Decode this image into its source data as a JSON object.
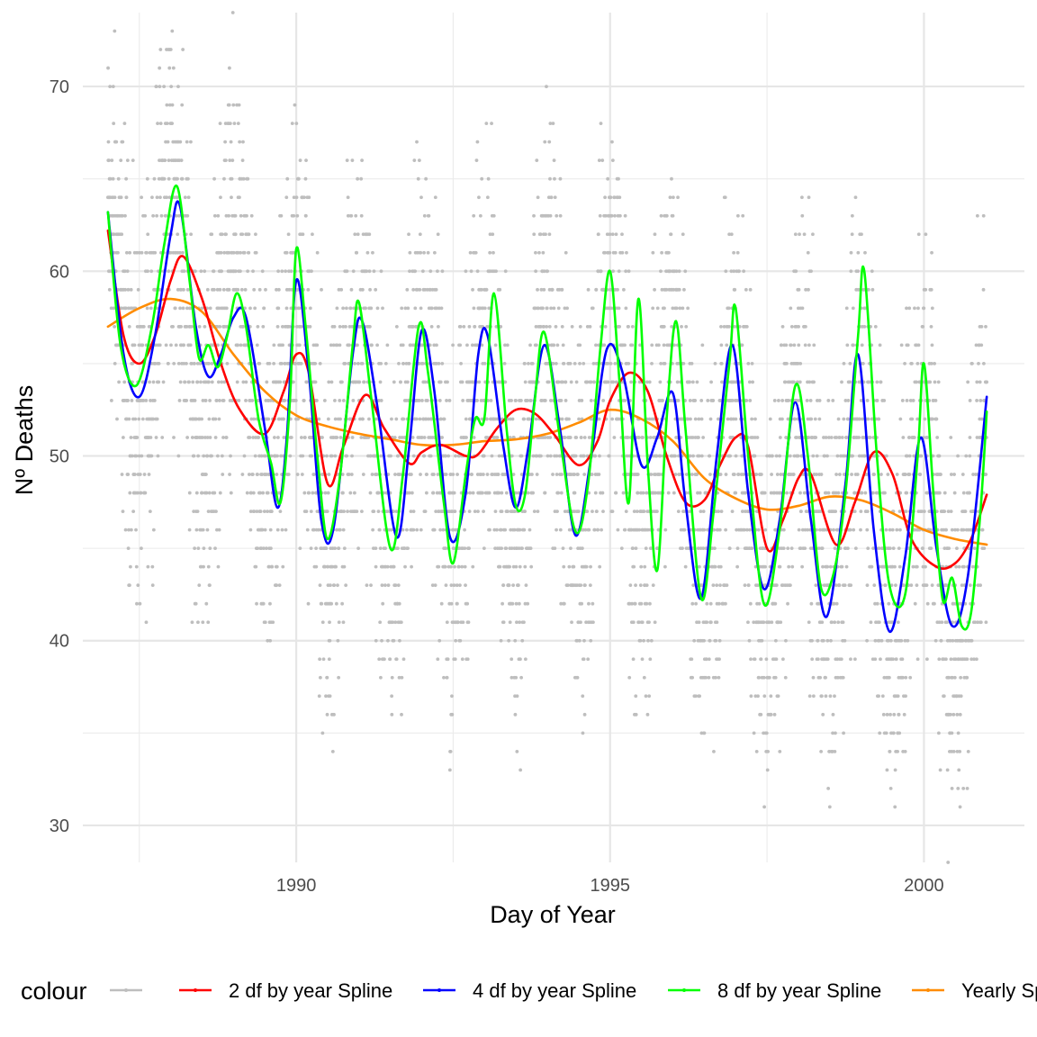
{
  "chart_data": {
    "type": "line",
    "title": "",
    "xlabel": "Day of Year",
    "ylabel": "Nº Deaths",
    "xlim": [
      1986.6,
      2001.6
    ],
    "ylim": [
      28,
      74
    ],
    "x_ticks": [
      1990,
      1995,
      2000
    ],
    "y_ticks": [
      30,
      40,
      50,
      60,
      70
    ],
    "x_minor_ticks": [
      1987.5,
      1992.5,
      1997.5
    ],
    "y_minor_ticks": [
      35,
      45,
      55,
      65
    ],
    "grid": true,
    "legend": {
      "title": "colour",
      "position": "bottom",
      "entries": [
        {
          "label": "",
          "color": "#bebebe"
        },
        {
          "label": "2 df by year Spline",
          "color": "#ff0000"
        },
        {
          "label": "4 df by year Spline",
          "color": "#0000ff"
        },
        {
          "label": "8 df by year Spline",
          "color": "#00ff00"
        },
        {
          "label": "Yearly Spline",
          "color": "#ff8c00"
        }
      ]
    },
    "points": {
      "color": "#bebebe",
      "x_start": 1987.0,
      "x_end": 2001.0,
      "count": 5114,
      "trend": [
        [
          1987.0,
          57
        ],
        [
          1988.0,
          58.5
        ],
        [
          1989.0,
          55
        ],
        [
          1990.0,
          52.2
        ],
        [
          1991.0,
          51.2
        ],
        [
          1992.0,
          50.6
        ],
        [
          1993.0,
          50.8
        ],
        [
          1994.0,
          51.2
        ],
        [
          1995.0,
          52.5
        ],
        [
          1996.0,
          50.8
        ],
        [
          1997.0,
          47.7
        ],
        [
          1998.0,
          47.5
        ],
        [
          1999.0,
          47.5
        ],
        [
          2000.0,
          46.0
        ],
        [
          2001.0,
          45.2
        ]
      ],
      "seasonal_amplitude": 6,
      "spread": 5
    },
    "series": [
      {
        "name": "2 df by year Spline",
        "color": "#ff0000",
        "points": [
          [
            1987.0,
            62.2
          ],
          [
            1987.25,
            56.5
          ],
          [
            1987.5,
            55.0
          ],
          [
            1987.75,
            56.5
          ],
          [
            1988.0,
            59.5
          ],
          [
            1988.2,
            60.8
          ],
          [
            1988.5,
            58.5
          ],
          [
            1988.8,
            55.0
          ],
          [
            1989.1,
            52.5
          ],
          [
            1989.5,
            51.2
          ],
          [
            1989.8,
            53.5
          ],
          [
            1990.0,
            55.5
          ],
          [
            1990.2,
            54.5
          ],
          [
            1990.5,
            48.5
          ],
          [
            1990.75,
            50.5
          ],
          [
            1991.1,
            53.3
          ],
          [
            1991.4,
            51.5
          ],
          [
            1991.8,
            49.6
          ],
          [
            1992.0,
            50.2
          ],
          [
            1992.3,
            50.6
          ],
          [
            1992.7,
            50.0
          ],
          [
            1992.9,
            50.1
          ],
          [
            1993.2,
            51.5
          ],
          [
            1993.5,
            52.5
          ],
          [
            1993.8,
            52.3
          ],
          [
            1994.1,
            51.2
          ],
          [
            1994.5,
            49.5
          ],
          [
            1994.8,
            50.8
          ],
          [
            1995.0,
            53.0
          ],
          [
            1995.3,
            54.5
          ],
          [
            1995.6,
            53.5
          ],
          [
            1995.9,
            50.0
          ],
          [
            1996.2,
            47.5
          ],
          [
            1996.5,
            47.6
          ],
          [
            1996.75,
            49.5
          ],
          [
            1997.0,
            51.0
          ],
          [
            1997.2,
            50.5
          ],
          [
            1997.5,
            45.0
          ],
          [
            1997.75,
            46.5
          ],
          [
            1998.0,
            48.8
          ],
          [
            1998.2,
            49.0
          ],
          [
            1998.6,
            45.2
          ],
          [
            1998.9,
            47.5
          ],
          [
            1999.2,
            50.2
          ],
          [
            1999.5,
            49.0
          ],
          [
            1999.8,
            45.5
          ],
          [
            2000.2,
            44.0
          ],
          [
            2000.5,
            44.2
          ],
          [
            2000.75,
            45.5
          ],
          [
            2001.0,
            47.9
          ]
        ]
      },
      {
        "name": "4 df by year Spline",
        "color": "#0000ff",
        "points": [
          [
            1987.0,
            63.2
          ],
          [
            1987.25,
            55.5
          ],
          [
            1987.5,
            53.2
          ],
          [
            1987.75,
            56.5
          ],
          [
            1988.0,
            62.0
          ],
          [
            1988.15,
            63.5
          ],
          [
            1988.4,
            57.0
          ],
          [
            1988.6,
            54.3
          ],
          [
            1988.8,
            55.5
          ],
          [
            1989.0,
            57.5
          ],
          [
            1989.2,
            57.5
          ],
          [
            1989.5,
            51.5
          ],
          [
            1989.7,
            47.2
          ],
          [
            1989.85,
            51.0
          ],
          [
            1990.0,
            59.5
          ],
          [
            1990.2,
            54.5
          ],
          [
            1990.4,
            46.5
          ],
          [
            1990.6,
            46.2
          ],
          [
            1990.9,
            55.5
          ],
          [
            1991.05,
            57.3
          ],
          [
            1991.3,
            52.5
          ],
          [
            1991.6,
            45.6
          ],
          [
            1991.8,
            50.5
          ],
          [
            1992.0,
            56.8
          ],
          [
            1992.2,
            53.5
          ],
          [
            1992.45,
            45.6
          ],
          [
            1992.7,
            48.0
          ],
          [
            1992.9,
            55.5
          ],
          [
            1993.05,
            56.5
          ],
          [
            1993.3,
            50.5
          ],
          [
            1993.5,
            47.2
          ],
          [
            1993.7,
            50.5
          ],
          [
            1993.95,
            56.0
          ],
          [
            1994.2,
            51.5
          ],
          [
            1994.45,
            45.7
          ],
          [
            1994.7,
            50.0
          ],
          [
            1994.95,
            55.8
          ],
          [
            1995.2,
            54.5
          ],
          [
            1995.5,
            49.5
          ],
          [
            1995.75,
            51.0
          ],
          [
            1996.0,
            53.4
          ],
          [
            1996.2,
            47.5
          ],
          [
            1996.45,
            42.3
          ],
          [
            1996.7,
            50.0
          ],
          [
            1996.95,
            56.0
          ],
          [
            1997.2,
            48.0
          ],
          [
            1997.45,
            42.8
          ],
          [
            1997.7,
            46.5
          ],
          [
            1997.95,
            52.9
          ],
          [
            1998.2,
            46.5
          ],
          [
            1998.45,
            41.3
          ],
          [
            1998.75,
            48.5
          ],
          [
            1998.95,
            55.5
          ],
          [
            1999.2,
            46.0
          ],
          [
            1999.45,
            40.5
          ],
          [
            1999.7,
            44.5
          ],
          [
            1999.95,
            51.0
          ],
          [
            2000.2,
            45.0
          ],
          [
            2000.45,
            40.8
          ],
          [
            2000.7,
            43.5
          ],
          [
            2001.0,
            53.2
          ]
        ]
      },
      {
        "name": "8 df by year Spline",
        "color": "#00ff00",
        "points": [
          [
            1987.0,
            63.2
          ],
          [
            1987.2,
            56.0
          ],
          [
            1987.45,
            53.8
          ],
          [
            1987.7,
            57.0
          ],
          [
            1987.9,
            61.5
          ],
          [
            1988.1,
            64.6
          ],
          [
            1988.3,
            59.5
          ],
          [
            1988.45,
            55.3
          ],
          [
            1988.6,
            56.0
          ],
          [
            1988.75,
            54.8
          ],
          [
            1988.9,
            56.5
          ],
          [
            1989.05,
            58.8
          ],
          [
            1989.2,
            57.0
          ],
          [
            1989.4,
            52.0
          ],
          [
            1989.6,
            49.6
          ],
          [
            1989.75,
            47.5
          ],
          [
            1989.9,
            53.0
          ],
          [
            1990.0,
            61.2
          ],
          [
            1990.15,
            57.0
          ],
          [
            1990.35,
            49.5
          ],
          [
            1990.5,
            45.5
          ],
          [
            1990.7,
            49.0
          ],
          [
            1990.9,
            56.0
          ],
          [
            1991.0,
            58.3
          ],
          [
            1991.2,
            53.0
          ],
          [
            1991.5,
            45.0
          ],
          [
            1991.7,
            49.0
          ],
          [
            1991.95,
            57.0
          ],
          [
            1992.1,
            54.5
          ],
          [
            1992.35,
            47.5
          ],
          [
            1992.5,
            44.2
          ],
          [
            1992.7,
            49.0
          ],
          [
            1992.85,
            52.0
          ],
          [
            1993.0,
            52.1
          ],
          [
            1993.15,
            58.8
          ],
          [
            1993.35,
            51.5
          ],
          [
            1993.5,
            47.3
          ],
          [
            1993.65,
            48.0
          ],
          [
            1993.8,
            53.0
          ],
          [
            1993.95,
            56.7
          ],
          [
            1994.2,
            51.0
          ],
          [
            1994.45,
            45.9
          ],
          [
            1994.65,
            48.5
          ],
          [
            1994.85,
            56.0
          ],
          [
            1995.0,
            60.0
          ],
          [
            1995.15,
            54.0
          ],
          [
            1995.3,
            47.5
          ],
          [
            1995.45,
            58.5
          ],
          [
            1995.6,
            49.5
          ],
          [
            1995.75,
            43.8
          ],
          [
            1995.9,
            52.0
          ],
          [
            1996.05,
            57.3
          ],
          [
            1996.2,
            51.5
          ],
          [
            1996.45,
            42.3
          ],
          [
            1996.65,
            47.0
          ],
          [
            1996.9,
            55.0
          ],
          [
            1997.0,
            58.0
          ],
          [
            1997.2,
            50.0
          ],
          [
            1997.45,
            42.0
          ],
          [
            1997.7,
            46.0
          ],
          [
            1997.95,
            53.8
          ],
          [
            1998.15,
            50.0
          ],
          [
            1998.35,
            43.0
          ],
          [
            1998.55,
            43.5
          ],
          [
            1998.75,
            48.0
          ],
          [
            1998.95,
            56.5
          ],
          [
            1999.05,
            60.0
          ],
          [
            1999.25,
            50.0
          ],
          [
            1999.45,
            43.0
          ],
          [
            1999.7,
            42.5
          ],
          [
            1999.9,
            50.0
          ],
          [
            2000.0,
            55.0
          ],
          [
            2000.15,
            48.0
          ],
          [
            2000.3,
            42.2
          ],
          [
            2000.45,
            43.4
          ],
          [
            2000.6,
            40.8
          ],
          [
            2000.75,
            41.5
          ],
          [
            2000.9,
            47.0
          ],
          [
            2001.0,
            52.4
          ]
        ]
      },
      {
        "name": "Yearly Spline",
        "color": "#ff8c00",
        "points": [
          [
            1987.0,
            57.0
          ],
          [
            1987.5,
            58.0
          ],
          [
            1988.0,
            58.5
          ],
          [
            1988.5,
            57.8
          ],
          [
            1989.0,
            55.5
          ],
          [
            1989.5,
            53.5
          ],
          [
            1990.0,
            52.2
          ],
          [
            1990.5,
            51.6
          ],
          [
            1991.0,
            51.2
          ],
          [
            1991.5,
            50.9
          ],
          [
            1992.0,
            50.6
          ],
          [
            1992.5,
            50.6
          ],
          [
            1993.0,
            50.8
          ],
          [
            1993.5,
            50.9
          ],
          [
            1994.0,
            51.2
          ],
          [
            1994.5,
            51.8
          ],
          [
            1995.0,
            52.5
          ],
          [
            1995.5,
            52.0
          ],
          [
            1996.0,
            50.8
          ],
          [
            1996.5,
            48.8
          ],
          [
            1997.0,
            47.7
          ],
          [
            1997.5,
            47.1
          ],
          [
            1998.0,
            47.3
          ],
          [
            1998.5,
            47.8
          ],
          [
            1999.0,
            47.6
          ],
          [
            1999.5,
            46.9
          ],
          [
            2000.0,
            46.0
          ],
          [
            2000.5,
            45.5
          ],
          [
            2001.0,
            45.2
          ]
        ]
      }
    ]
  }
}
